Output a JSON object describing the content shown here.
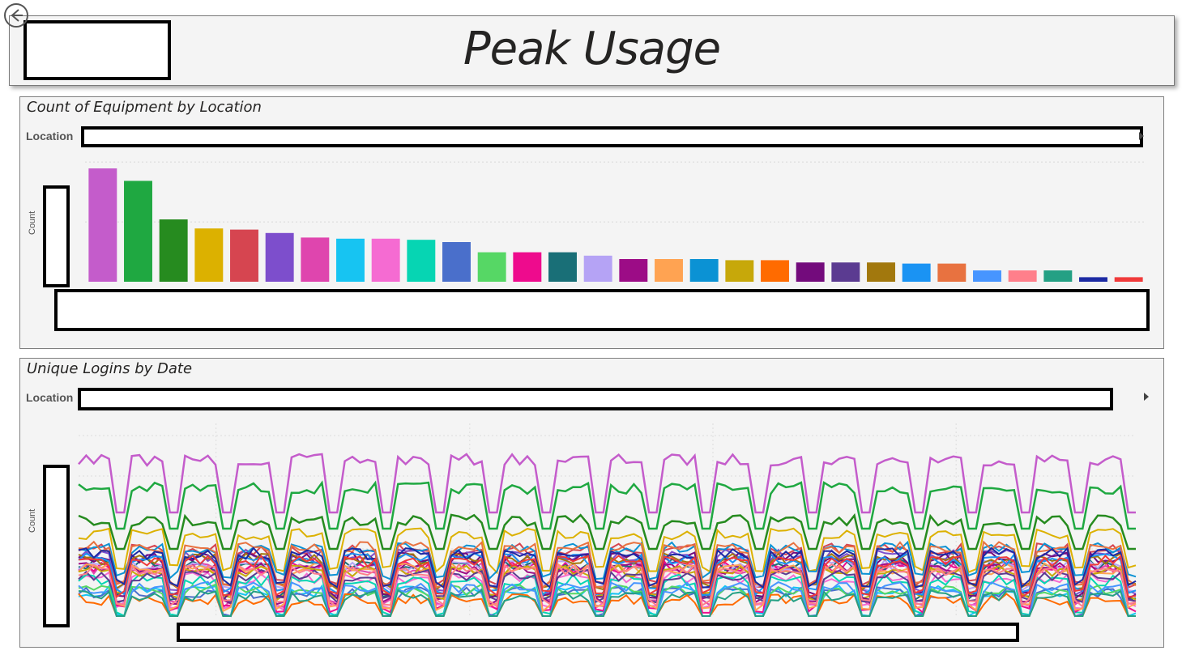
{
  "header": {
    "title": "Peak Usage",
    "back_icon": "back-arrow-icon"
  },
  "panels": {
    "equipment": {
      "title": "Count of Equipment by Location",
      "legend_label": "Location",
      "y_axis_title": "Count"
    },
    "logins": {
      "title": "Unique Logins by Date",
      "legend_label": "Location",
      "y_axis_title": "Count"
    }
  },
  "chart_data": [
    {
      "type": "bar",
      "title": "Count of Equipment by Location",
      "ylabel": "Count",
      "grid": true,
      "legend": "top",
      "colors": [
        "#c45ccb",
        "#1fa841",
        "#268b1f",
        "#dcb100",
        "#d64550",
        "#7d4ecc",
        "#df45ae",
        "#17c4f2",
        "#f56bd2",
        "#06d5b3",
        "#4a6fcb",
        "#56d765",
        "#ee0b8d",
        "#196f77",
        "#b5a3f5",
        "#9c0c86",
        "#ffa352",
        "#0b92d4",
        "#c7a80a",
        "#ff6b00",
        "#730b7c",
        "#5b3b91",
        "#a2780d",
        "#1a93f3",
        "#e87240",
        "#4795ff",
        "#ff7f8b",
        "#24a084",
        "#1c2aa3",
        "#f03a3a"
      ],
      "values": [
        100,
        89,
        55,
        47,
        46,
        43,
        39,
        38,
        38,
        37,
        35,
        26,
        26,
        26,
        23,
        20,
        20,
        20,
        19,
        19,
        17,
        17,
        17,
        16,
        16,
        10,
        10,
        10,
        4,
        4
      ],
      "ylim": [
        0,
        120
      ]
    },
    {
      "type": "line",
      "title": "Unique Logins by Date",
      "ylabel": "Count",
      "grid": true,
      "legend": "top",
      "series_count": 30,
      "ylim": [
        0,
        220
      ]
    }
  ]
}
